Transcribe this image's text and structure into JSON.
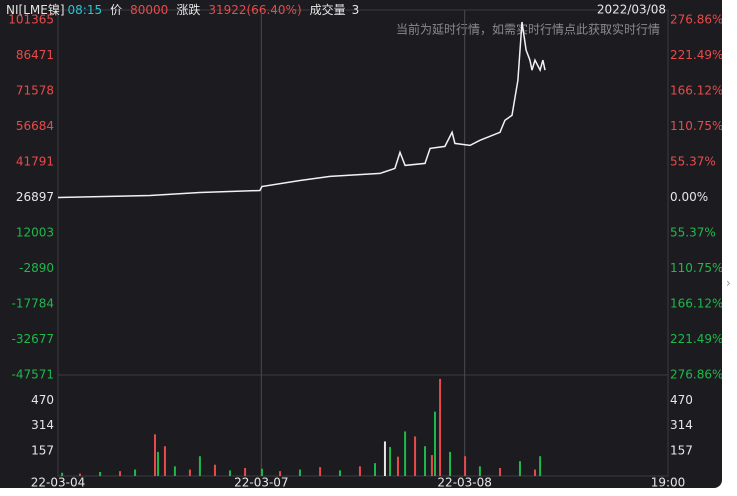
{
  "header": {
    "symbol": "NI[LME镍]",
    "time": "08:15",
    "price_label": "价",
    "price": "80000",
    "change_label": "涨跌",
    "change": "31922(66.40%)",
    "volume_label": "成交量",
    "volume": "3",
    "date": "2022/03/08",
    "notice": "当前为延时行情，如需实时行情点此获取实时行情"
  },
  "chart_data": {
    "type": "line",
    "base": 26897,
    "up_color": "#e84a4a",
    "down_color": "#1fb84a",
    "flat_color": "#e6e6e6",
    "line_color": "#f2f2f2",
    "grid_color": "#4a4a50",
    "xlim": [
      0,
      3
    ],
    "xticks": [
      {
        "value": 0,
        "label": "22-03-04"
      },
      {
        "value": 1,
        "label": "22-03-07"
      },
      {
        "value": 2,
        "label": "22-03-08"
      },
      {
        "value": 3,
        "label": "19:00"
      }
    ],
    "ylim": [
      -47571,
      101365
    ],
    "yticks": [
      101365,
      86471,
      71578,
      56684,
      41791,
      26897,
      12003,
      -2890,
      -17784,
      -32677,
      -47571
    ],
    "y2lim": [
      -276.86,
      276.86
    ],
    "y2ticks": [
      {
        "value": 276.86,
        "label": "276.86%"
      },
      {
        "value": 221.49,
        "label": "221.49%"
      },
      {
        "value": 166.12,
        "label": "166.12%"
      },
      {
        "value": 110.75,
        "label": "110.75%"
      },
      {
        "value": 55.37,
        "label": "55.37%"
      },
      {
        "value": 0,
        "label": "0.00%"
      },
      {
        "value": -55.37,
        "label": "55.37%"
      },
      {
        "value": -110.75,
        "label": "110.75%"
      },
      {
        "value": -166.12,
        "label": "166.12%"
      },
      {
        "value": -221.49,
        "label": "221.49%"
      },
      {
        "value": -276.86,
        "label": "276.86%"
      }
    ],
    "x": [
      0,
      0.452,
      0.698,
      0.993,
      1.003,
      1.19,
      1.338,
      1.584,
      1.657,
      1.682,
      1.707,
      1.805,
      1.83,
      1.903,
      1.938,
      1.952,
      2.026,
      2.075,
      2.174,
      2.198,
      2.233,
      2.262,
      2.282,
      2.302,
      2.321,
      2.331,
      2.346,
      2.371,
      2.385,
      2.395
    ],
    "values": [
      26897,
      27738,
      28999,
      29842,
      31525,
      34049,
      35732,
      36994,
      39097,
      45829,
      40359,
      41201,
      47511,
      48352,
      54242,
      49614,
      48773,
      50877,
      54242,
      59291,
      61394,
      76119,
      100520,
      88740,
      84533,
      80326,
      84533,
      80326,
      84533,
      80326
    ],
    "volume": {
      "ylim": [
        0,
        628
      ],
      "yticks": [
        157,
        314,
        470
      ],
      "x": [
        0.02,
        0.108,
        0.207,
        0.305,
        0.379,
        0.477,
        0.492,
        0.526,
        0.575,
        0.649,
        0.698,
        0.772,
        0.846,
        0.92,
        1.003,
        1.092,
        1.19,
        1.289,
        1.387,
        1.485,
        1.559,
        1.608,
        1.633,
        1.672,
        1.707,
        1.756,
        1.805,
        1.839,
        1.854,
        1.879,
        1.928,
        2.002,
        2.075,
        2.174,
        2.272,
        2.346,
        2.371
      ],
      "values": [
        20,
        15,
        25,
        30,
        40,
        259,
        150,
        185,
        60,
        40,
        123,
        70,
        35,
        50,
        45,
        30,
        40,
        55,
        35,
        60,
        80,
        215,
        180,
        120,
        277,
        246,
        185,
        130,
        400,
        604,
        150,
        123,
        60,
        50,
        92,
        40,
        123
      ],
      "colors": [
        "#1fb84a",
        "#e84a4a",
        "#1fb84a",
        "#e84a4a",
        "#1fb84a",
        "#e84a4a",
        "#1fb84a",
        "#e84a4a",
        "#1fb84a",
        "#e84a4a",
        "#1fb84a",
        "#e84a4a",
        "#1fb84a",
        "#e84a4a",
        "#1fb84a",
        "#e84a4a",
        "#1fb84a",
        "#e84a4a",
        "#1fb84a",
        "#e84a4a",
        "#1fb84a",
        "#e6e6e6",
        "#1fb84a",
        "#e84a4a",
        "#1fb84a",
        "#e84a4a",
        "#1fb84a",
        "#e84a4a",
        "#1fb84a",
        "#e84a4a",
        "#1fb84a",
        "#e84a4a",
        "#1fb84a",
        "#e84a4a",
        "#1fb84a",
        "#e84a4a",
        "#1fb84a"
      ]
    }
  }
}
